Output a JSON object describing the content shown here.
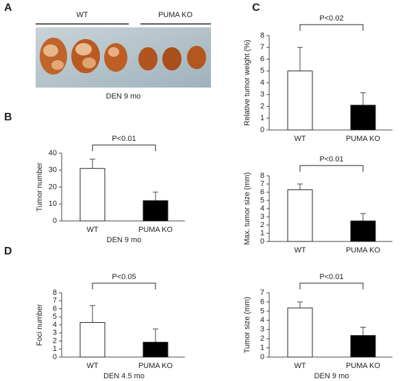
{
  "figure": {
    "panel_labels": [
      "A",
      "B",
      "C",
      "D"
    ],
    "photo": {
      "group_labels": [
        "WT",
        "PUMA KO"
      ],
      "caption": "DEN 9 mo"
    }
  },
  "chart_data": [
    {
      "type": "bar",
      "ylabel": "Tumor number",
      "xlabel": "DEN 9 mo",
      "annotation": "P<0.01",
      "categories": [
        "WT",
        "PUMA KO"
      ],
      "values": [
        31,
        12
      ],
      "errors": [
        5.5,
        5
      ],
      "colors": [
        "#ffffff",
        "#000000"
      ],
      "ylim": [
        0,
        40
      ],
      "yticks": [
        0,
        10,
        20,
        30,
        40
      ]
    },
    {
      "type": "bar",
      "ylabel": "Relative tumor weight (%)",
      "annotation": "P<0.02",
      "categories": [
        "WT",
        "PUMA KO"
      ],
      "values": [
        5.0,
        2.1
      ],
      "errors": [
        2.0,
        1.05
      ],
      "colors": [
        "#ffffff",
        "#000000"
      ],
      "ylim": [
        0,
        8
      ],
      "yticks": [
        0,
        1,
        2,
        3,
        4,
        5,
        6,
        7,
        8
      ]
    },
    {
      "type": "bar",
      "ylabel": "Max. tumor size (mm)",
      "annotation": "P<0.01",
      "categories": [
        "WT",
        "PUMA KO"
      ],
      "values": [
        6.3,
        2.5
      ],
      "errors": [
        0.7,
        0.9
      ],
      "colors": [
        "#ffffff",
        "#000000"
      ],
      "ylim": [
        0,
        8
      ],
      "yticks": [
        0,
        1,
        2,
        3,
        4,
        5,
        6,
        7,
        8
      ]
    },
    {
      "type": "bar",
      "ylabel": "Foci number",
      "xlabel": "DEN 4.5 mo",
      "annotation": "P<0.05",
      "categories": [
        "WT",
        "PUMA KO"
      ],
      "values": [
        4.3,
        1.85
      ],
      "errors": [
        2.1,
        1.65
      ],
      "colors": [
        "#ffffff",
        "#000000"
      ],
      "ylim": [
        0,
        8
      ],
      "yticks": [
        0,
        1,
        2,
        3,
        4,
        5,
        6,
        7,
        8
      ]
    },
    {
      "type": "bar",
      "ylabel": "Tumor size (mm)",
      "xlabel": "DEN 9 mo",
      "annotation": "P<0.01",
      "categories": [
        "WT",
        "PUMA KO"
      ],
      "values": [
        5.35,
        2.35
      ],
      "errors": [
        0.65,
        0.9
      ],
      "colors": [
        "#ffffff",
        "#000000"
      ],
      "ylim": [
        0,
        7
      ],
      "yticks": [
        0,
        1,
        2,
        3,
        4,
        5,
        6,
        7
      ]
    }
  ]
}
